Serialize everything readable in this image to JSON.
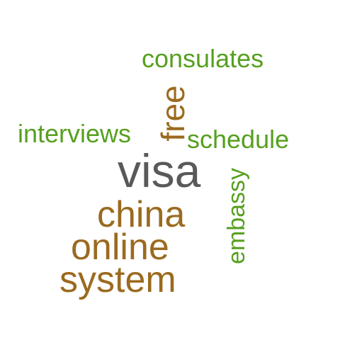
{
  "colors": {
    "large_words": "#59595b",
    "brown": "#9b6a1f",
    "green": "#56a01f"
  },
  "words": [
    {
      "key": "visa",
      "text": "visa",
      "color": "#59595b"
    },
    {
      "key": "china",
      "text": "china",
      "color": "#9b6a1f"
    },
    {
      "key": "online",
      "text": "online",
      "color": "#9b6a1f"
    },
    {
      "key": "system",
      "text": "system",
      "color": "#9b6a1f"
    },
    {
      "key": "free",
      "text": "free",
      "color": "#9b6a1f"
    },
    {
      "key": "consulates",
      "text": "consulates",
      "color": "#56a01f"
    },
    {
      "key": "interviews",
      "text": "interviews",
      "color": "#56a01f"
    },
    {
      "key": "schedule",
      "text": "schedule",
      "color": "#56a01f"
    },
    {
      "key": "embassy",
      "text": "embassy",
      "color": "#56a01f"
    }
  ]
}
